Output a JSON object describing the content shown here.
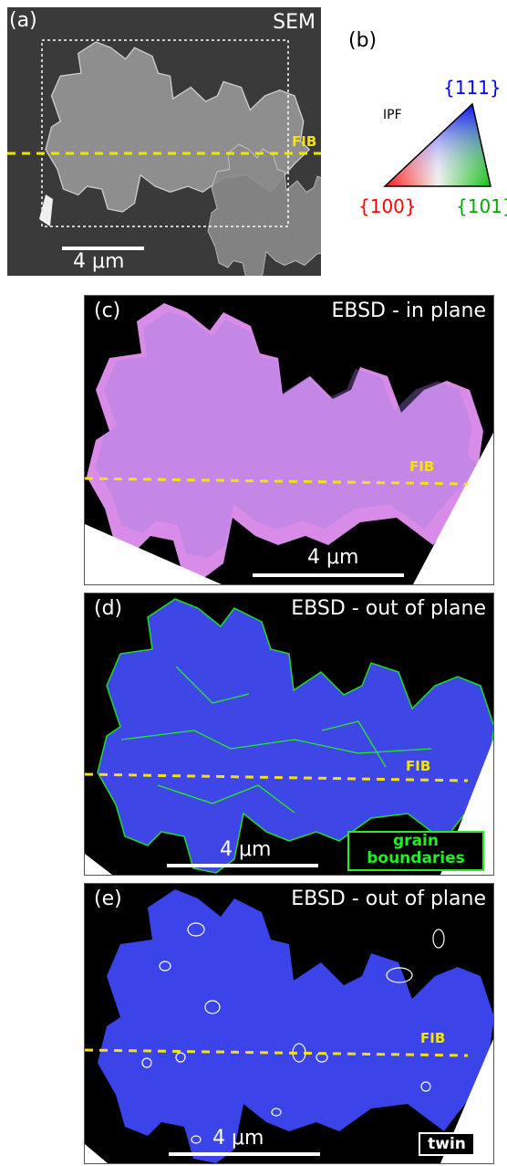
{
  "panel_a": {
    "label": "(a)",
    "title": "SEM",
    "fib_label": "FIB",
    "scale_text": "4 μm"
  },
  "panel_b": {
    "label": "(b)",
    "ipf_label": "IPF",
    "corners": {
      "c111": "{111}",
      "c100": "{100}",
      "c101": "{101}"
    },
    "colors": {
      "c111": "#0000ff",
      "c100": "#ff0000",
      "c101": "#00aa00"
    }
  },
  "panel_c": {
    "label": "(c)",
    "title": "EBSD - in plane",
    "fib_label": "FIB",
    "scale_text": "4 μm"
  },
  "panel_d": {
    "label": "(d)",
    "title": "EBSD - out of plane",
    "fib_label": "FIB",
    "scale_text": "4 μm",
    "legend_line1": "grain",
    "legend_line2": "boundaries"
  },
  "panel_e": {
    "label": "(e)",
    "title": "EBSD - out of plane",
    "fib_label": "FIB",
    "scale_text": "4 μm",
    "legend": "twin"
  },
  "colors": {
    "fib_line": "#f5e400",
    "grain_boundary": "#22ee22",
    "in_plane": "#d98be8",
    "out_plane": "#3f46e6"
  }
}
